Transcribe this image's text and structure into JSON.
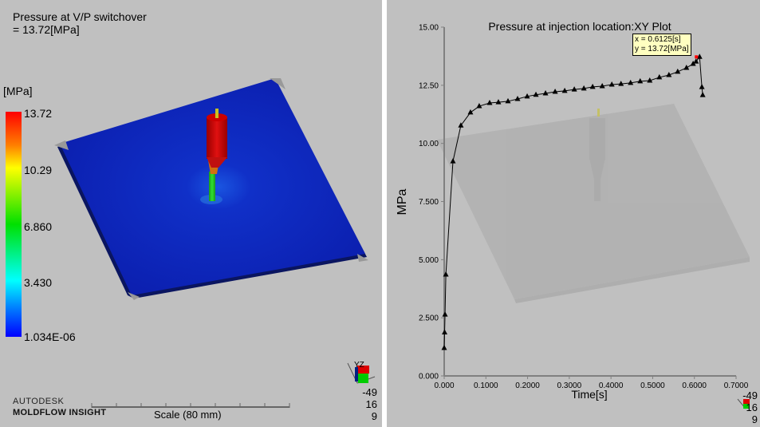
{
  "left_view": {
    "result_title": "Pressure at V/P switchover",
    "result_value": " = 13.72[MPa]",
    "legend_unit": "[MPa]",
    "legend_labels": [
      "13.72",
      "10.29",
      "6.860",
      "3.430",
      "1.034E-06"
    ],
    "logo_line1": "AUTODESK",
    "logo_line2": "MOLDFLOW INSIGHT",
    "scale_label": "Scale (80 mm)",
    "triad_values": [
      "-49",
      "16",
      "9"
    ],
    "triad_axes": [
      "Y",
      "Z"
    ]
  },
  "right_view": {
    "triad_values": [
      "-49",
      "16",
      "9"
    ],
    "tooltip": {
      "x_text": "x = 0.6125[s]",
      "y_text": "y = 13.72[MPa]"
    }
  },
  "chart_data": {
    "type": "line",
    "title": "Pressure at injection location:XY Plot",
    "xlabel": "Time[s]",
    "ylabel": "MPa",
    "xlim": [
      0,
      0.7
    ],
    "ylim": [
      0,
      15
    ],
    "x_ticks": [
      "0.000",
      "0.1000",
      "0.2000",
      "0.3000",
      "0.4000",
      "0.5000",
      "0.6000",
      "0.7000"
    ],
    "y_ticks": [
      "0.000",
      "2.500",
      "5.000",
      "7.500",
      "10.00",
      "12.50",
      "15.00"
    ],
    "grid": false,
    "marker": "triangle",
    "highlight": {
      "x": 0.6125,
      "y": 13.72,
      "color": "#ff0000"
    },
    "x": [
      0.0,
      0.001,
      0.002,
      0.004,
      0.021,
      0.04,
      0.063,
      0.084,
      0.109,
      0.13,
      0.153,
      0.176,
      0.199,
      0.22,
      0.243,
      0.266,
      0.289,
      0.312,
      0.335,
      0.356,
      0.379,
      0.402,
      0.424,
      0.447,
      0.47,
      0.493,
      0.516,
      0.539,
      0.56,
      0.581,
      0.597,
      0.604,
      0.6125,
      0.618,
      0.62
    ],
    "y": [
      1.2,
      1.87,
      2.64,
      4.36,
      9.23,
      10.77,
      11.33,
      11.6,
      11.74,
      11.77,
      11.81,
      11.91,
      12.02,
      12.09,
      12.15,
      12.22,
      12.26,
      12.32,
      12.36,
      12.43,
      12.46,
      12.53,
      12.56,
      12.6,
      12.67,
      12.7,
      12.84,
      12.94,
      13.08,
      13.25,
      13.42,
      13.52,
      13.72,
      12.42,
      12.08
    ]
  }
}
